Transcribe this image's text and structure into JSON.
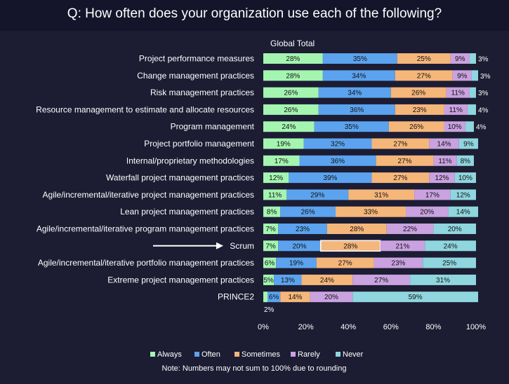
{
  "colors": {
    "Always": "#a4f5b0",
    "Often": "#5ba3ee",
    "Sometimes": "#f5b67a",
    "Rarely": "#c9a2df",
    "Never": "#8fd6de"
  },
  "chart_data": {
    "type": "bar",
    "orientation": "horizontal-stacked",
    "title": "Q: How often does your organization use each of the following?",
    "column_header": "Global Total",
    "note": "Note: Numbers may not sum to 100% due to rounding",
    "highlight_category": "Scrum",
    "categories": [
      "Project performance measures",
      "Change management practices",
      "Risk management practices",
      "Resource management to estimate and allocate resources",
      "Program management",
      "Project portfolio management",
      "Internal/proprietary methodologies",
      "Waterfall project management practices",
      "Agile/incremental/iterative project management practices",
      "Lean project management practices",
      "Agile/incremental/iterative program management practices",
      "Scrum",
      "Agile/incremental/iterative portfolio management practices",
      "Extreme project management practices",
      "PRINCE2"
    ],
    "series": [
      {
        "name": "Always",
        "values": [
          28,
          28,
          26,
          26,
          24,
          19,
          17,
          12,
          11,
          8,
          7,
          7,
          6,
          5,
          2
        ]
      },
      {
        "name": "Often",
        "values": [
          35,
          34,
          34,
          36,
          35,
          32,
          36,
          39,
          29,
          26,
          23,
          20,
          19,
          13,
          6
        ]
      },
      {
        "name": "Sometimes",
        "values": [
          25,
          27,
          26,
          23,
          26,
          27,
          27,
          27,
          31,
          33,
          28,
          28,
          27,
          24,
          14
        ]
      },
      {
        "name": "Rarely",
        "values": [
          9,
          9,
          11,
          11,
          10,
          14,
          11,
          12,
          17,
          20,
          22,
          21,
          23,
          27,
          20
        ]
      },
      {
        "name": "Never",
        "values": [
          3,
          3,
          3,
          4,
          4,
          9,
          8,
          10,
          12,
          14,
          20,
          24,
          25,
          31,
          59
        ]
      }
    ],
    "xlim": [
      0,
      100
    ],
    "xticks": [
      "0%",
      "20%",
      "40%",
      "60%",
      "80%",
      "100%"
    ],
    "legend": [
      "Always",
      "Often",
      "Sometimes",
      "Rarely",
      "Never"
    ]
  }
}
